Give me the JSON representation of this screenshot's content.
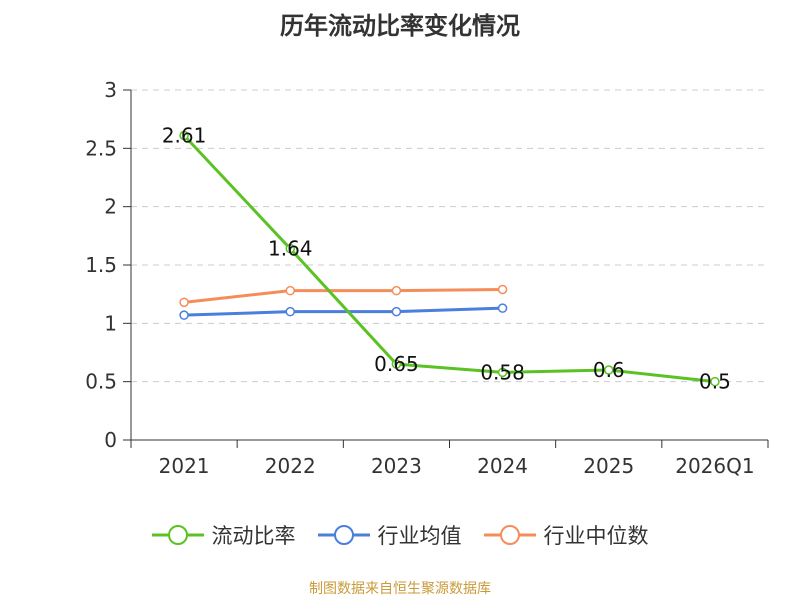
{
  "chart_data": {
    "type": "line",
    "title": "历年流动比率变化情况",
    "categories": [
      "2021",
      "2022",
      "2023",
      "2024",
      "2025",
      "2026Q1"
    ],
    "ylim": [
      0,
      3
    ],
    "yticks": [
      "0",
      "0.5",
      "1",
      "1.5",
      "2",
      "2.5",
      "3"
    ],
    "series": [
      {
        "name": "流动比率",
        "color": "#5bc224",
        "values": [
          2.61,
          1.64,
          0.65,
          0.58,
          0.6,
          0.5
        ],
        "labels": [
          "2.61",
          "1.64",
          "0.65",
          "0.58",
          "0.6",
          "0.5"
        ]
      },
      {
        "name": "行业均值",
        "color": "#4a7fdb",
        "values": [
          1.07,
          1.1,
          1.1,
          1.13,
          null,
          null
        ]
      },
      {
        "name": "行业中位数",
        "color": "#f58d5b",
        "values": [
          1.18,
          1.28,
          1.28,
          1.29,
          null,
          null
        ]
      }
    ],
    "source": "制图数据来自恒生聚源数据库"
  }
}
